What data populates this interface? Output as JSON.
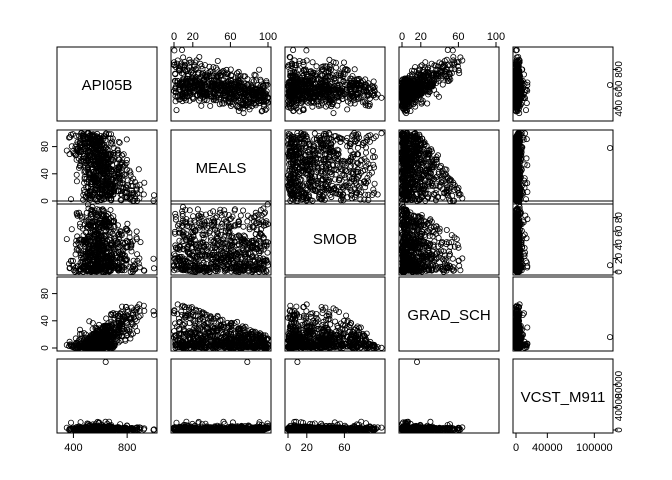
{
  "chart_data": {
    "type": "scatter",
    "variables": [
      "API05B",
      "MEALS",
      "SMOB",
      "GRAD_SCH",
      "VCST_M911"
    ],
    "ranges": {
      "API05B": [
        300,
        1000
      ],
      "MEALS": [
        0,
        100
      ],
      "SMOB": [
        0,
        100
      ],
      "GRAD_SCH": [
        0,
        100
      ],
      "VCST_M911": [
        0,
        120000
      ]
    },
    "ticks": {
      "API05B": [
        400,
        800
      ],
      "MEALS": [
        0,
        20,
        60,
        100
      ],
      "SMOB": [
        0,
        20,
        60
      ],
      "GRAD_SCH": [
        0,
        20,
        60,
        100
      ],
      "VCST_M911": [
        0,
        40000,
        100000
      ]
    },
    "axis_labels": {
      "top": [
        null,
        [
          "0",
          "20",
          "60",
          "100"
        ],
        null,
        [
          "0",
          "20",
          "60",
          "100"
        ],
        null
      ],
      "bottom": [
        [
          "400",
          "800"
        ],
        null,
        [
          "0",
          "20",
          "60"
        ],
        null,
        [
          "0",
          "40000",
          "100000"
        ]
      ],
      "left": [
        null,
        [
          "0",
          "40",
          "80"
        ],
        null,
        [
          "0",
          "40",
          "80"
        ],
        null
      ],
      "right": [
        [
          "400",
          "600",
          "800"
        ],
        null,
        [
          "0",
          "20",
          "40",
          "60",
          "80"
        ],
        null,
        [
          "0",
          "40000",
          "80000"
        ]
      ]
    },
    "ytick_values": {
      "API05B": [
        400,
        600,
        800
      ],
      "MEALS": [
        0,
        40,
        80
      ],
      "SMOB": [
        0,
        20,
        40,
        60,
        80
      ],
      "GRAD_SCH": [
        0,
        40,
        80
      ],
      "VCST_M911": [
        0,
        40000,
        80000
      ]
    },
    "outliers": [
      {
        "API05B": 640,
        "MEALS": 78,
        "SMOB": 10,
        "GRAD_SCH": 16,
        "VCST_M911": 120000
      }
    ],
    "grid": false,
    "legend": "none"
  }
}
